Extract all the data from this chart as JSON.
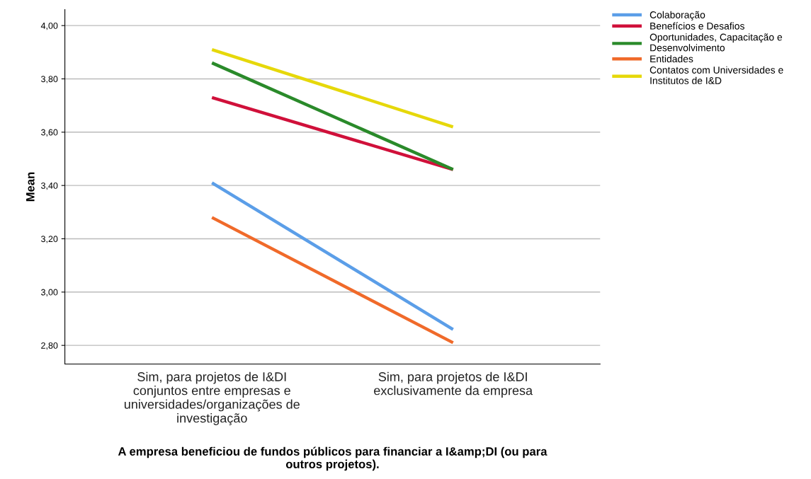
{
  "chart_data": {
    "type": "line",
    "xlabel": "A empresa beneficiou de fundos públicos para financiar a I&amp;DI (ou para outros projetos).",
    "ylabel": "Mean",
    "categories": [
      "Sim, para projetos de I&DI conjuntos entre empresas e universidades/organizações de investigação",
      "Sim, para projetos de I&DI exclusivamente da empresa"
    ],
    "series": [
      {
        "name": "Colaboração",
        "color": "#5b9ee8",
        "values": [
          3.41,
          2.86
        ]
      },
      {
        "name": "Benefícios e Desafios",
        "color": "#d0103a",
        "values": [
          3.73,
          3.46
        ]
      },
      {
        "name": "Oportunidades, Capacitação e Desenvolvimento",
        "color": "#2a8a2a",
        "values": [
          3.86,
          3.46
        ]
      },
      {
        "name": "Entidades",
        "color": "#f06a2a",
        "values": [
          3.28,
          2.81
        ]
      },
      {
        "name": "Contatos com Universidades e Institutos de I&D",
        "color": "#e6d80a",
        "values": [
          3.91,
          3.62
        ]
      }
    ],
    "ylim": [
      2.73,
      4.06
    ],
    "yticks": [
      {
        "value": 2.8,
        "label": "2,80"
      },
      {
        "value": 3.0,
        "label": "3,00"
      },
      {
        "value": 3.2,
        "label": "3,20"
      },
      {
        "value": 3.4,
        "label": "3,40"
      },
      {
        "value": 3.6,
        "label": "3,60"
      },
      {
        "value": 3.8,
        "label": "3,80"
      },
      {
        "value": 4.0,
        "label": "4,00"
      }
    ],
    "grid": "y",
    "legend": "top right",
    "marker": "none",
    "line_style": "solid"
  }
}
